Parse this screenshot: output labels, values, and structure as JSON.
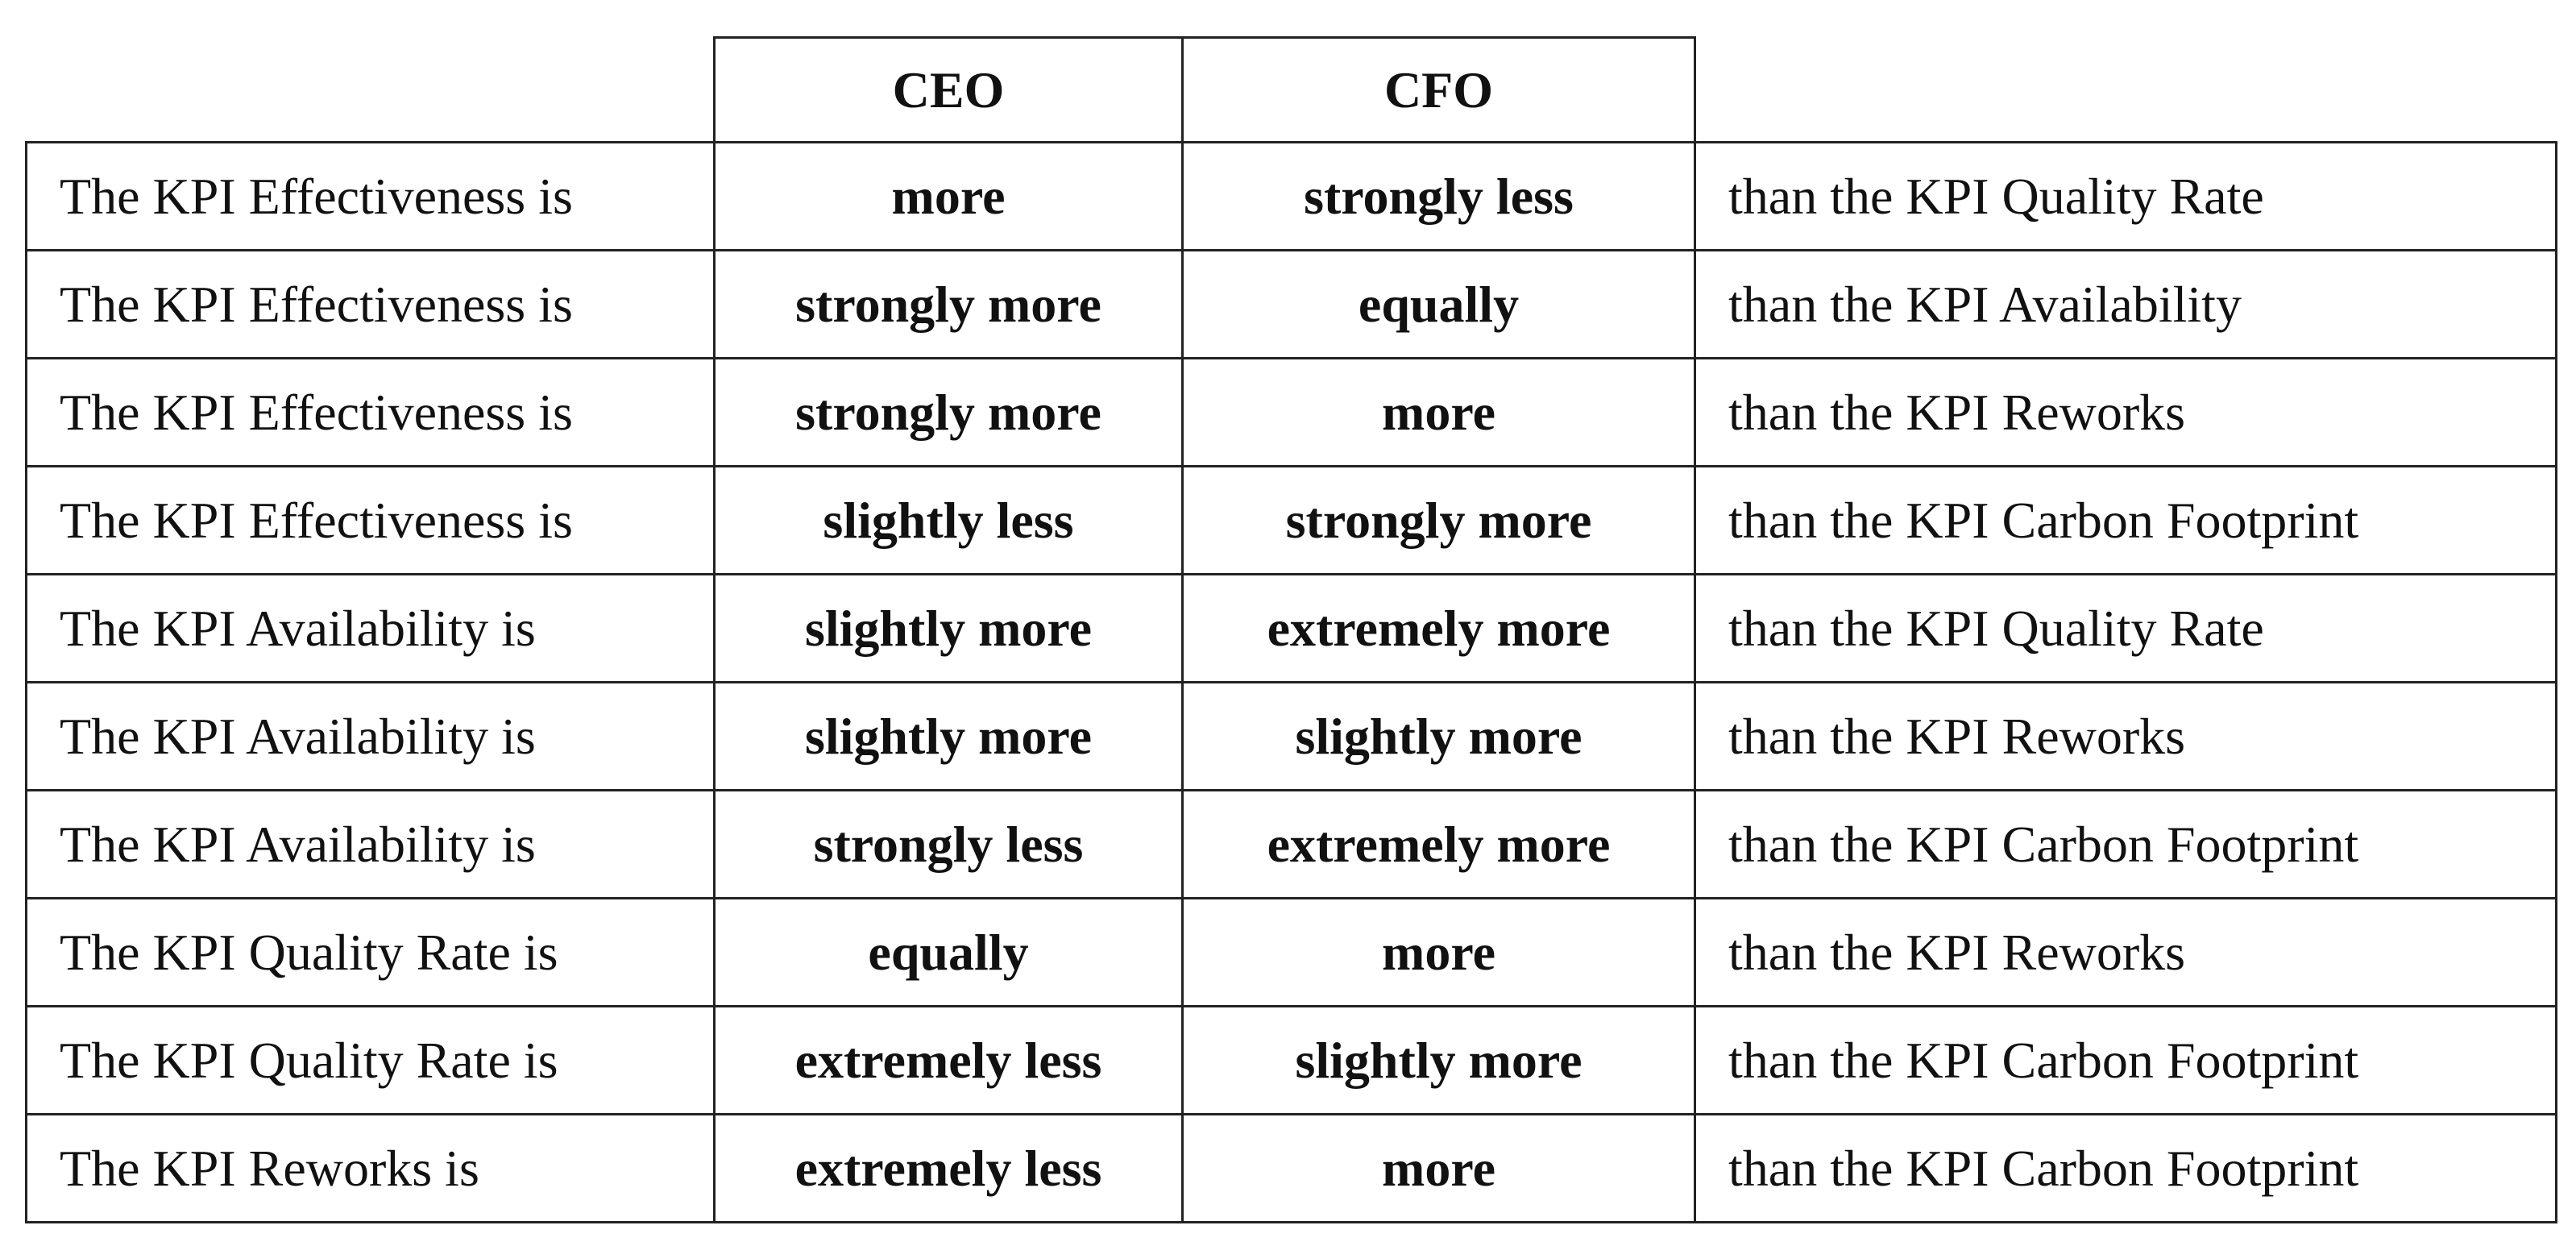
{
  "table": {
    "header": [
      "CEO",
      "CFO"
    ],
    "rows": [
      [
        "The KPI Effectiveness is",
        "more",
        "strongly less",
        "than the KPI Quality Rate"
      ],
      [
        "The KPI Effectiveness is",
        "strongly more",
        "equally",
        "than the KPI Availability"
      ],
      [
        "The KPI Effectiveness is",
        "strongly more",
        "more",
        "than the KPI Reworks"
      ],
      [
        "The KPI Effectiveness is",
        "slightly less",
        "strongly more",
        "than the KPI Carbon Footprint"
      ],
      [
        "The KPI Availability is",
        "slightly more",
        "extremely more",
        "than the KPI Quality Rate"
      ],
      [
        "The KPI Availability is",
        "slightly more",
        "slightly more",
        "than the KPI Reworks"
      ],
      [
        "The KPI Availability is",
        "strongly less",
        "extremely more",
        "than the KPI Carbon Footprint"
      ],
      [
        "The KPI Quality Rate is",
        "equally",
        "more",
        "than the KPI Reworks"
      ],
      [
        "The KPI Quality Rate is",
        "extremely less",
        "slightly more",
        "than the KPI Carbon Footprint"
      ],
      [
        "The KPI Reworks is",
        "extremely less",
        "more",
        "than the KPI Carbon Footprint"
      ]
    ]
  }
}
